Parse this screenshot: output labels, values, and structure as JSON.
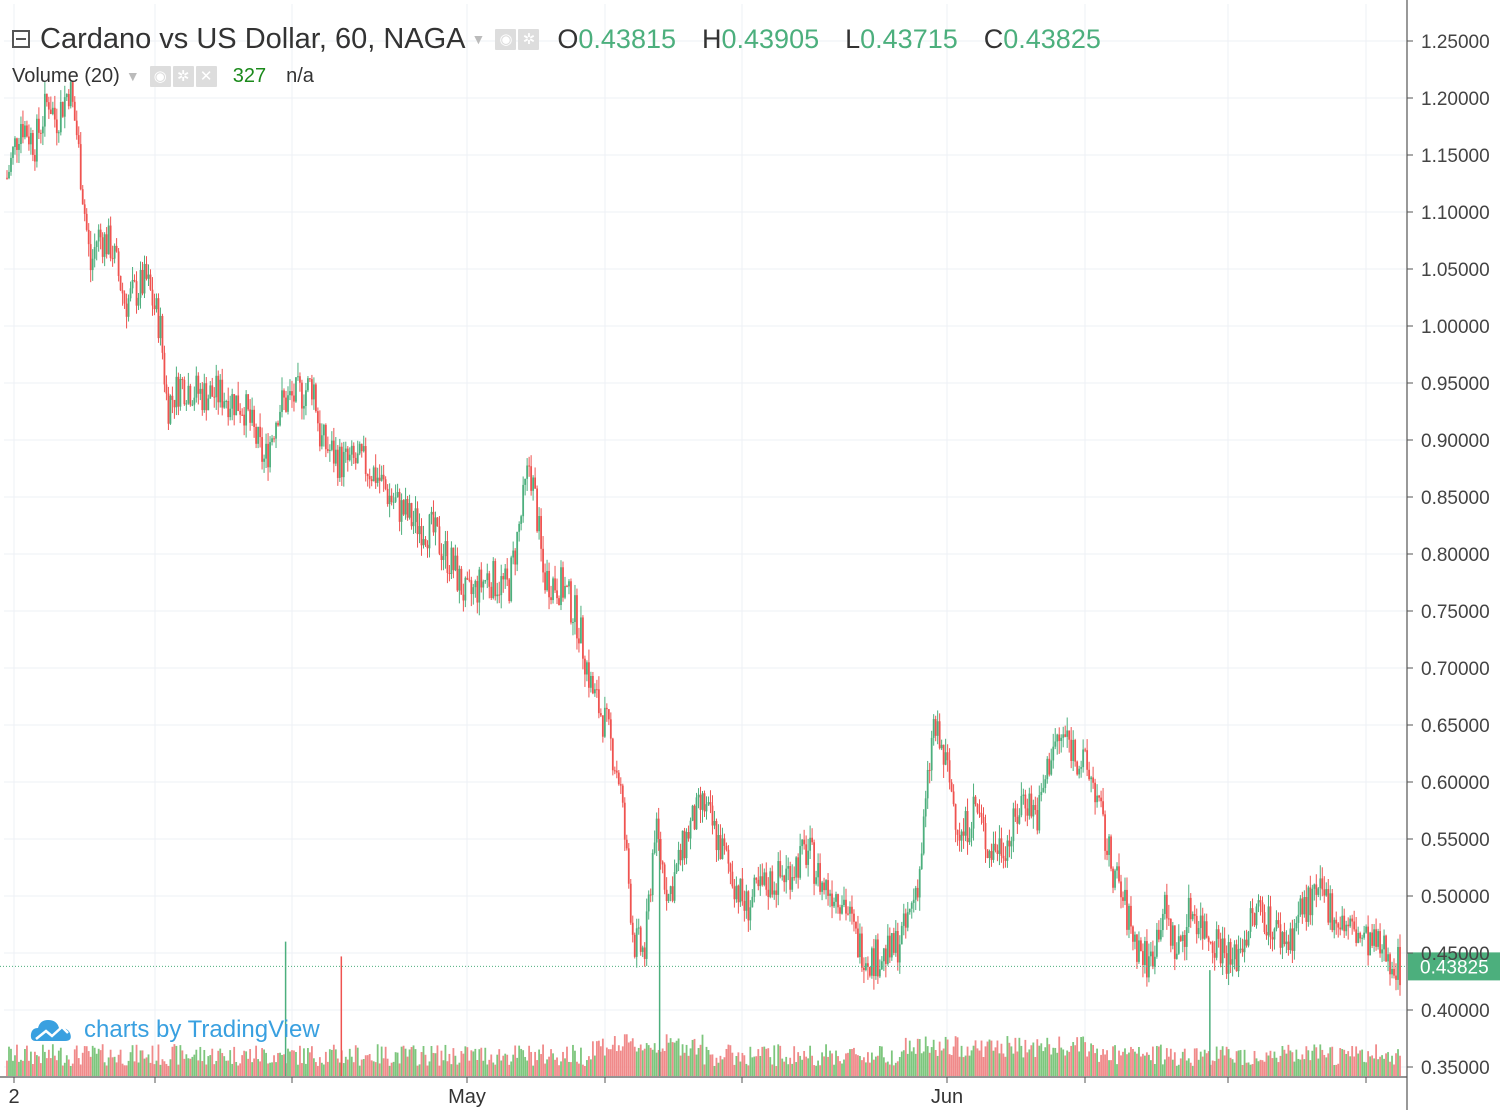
{
  "legend": {
    "title": "Cardano vs US Dollar, 60, NAGA",
    "ohlc": [
      {
        "key": "O",
        "value": "0.43815"
      },
      {
        "key": "H",
        "value": "0.43905"
      },
      {
        "key": "L",
        "value": "0.43715"
      },
      {
        "key": "C",
        "value": "0.43825"
      }
    ],
    "volume_title": "Volume (20)",
    "volume_value": "327",
    "volume_extra": "n/a"
  },
  "watermark": "charts by TradingView",
  "colors": {
    "up": "#4caf7d",
    "down": "#ef5350",
    "volume_up": "#7dc67d",
    "volume_down": "#f08a8a",
    "grid": "#eef1f5",
    "axis_text": "#444444",
    "price_label_bg": "#4caf7d",
    "watermark": "#39a0e0"
  },
  "chart_data": {
    "type": "candlestick",
    "symbol": "Cardano vs US Dollar",
    "interval": "60",
    "exchange": "NAGA",
    "y_axis": {
      "range": [
        0.345,
        1.27
      ],
      "ticks": [
        "1.25000",
        "1.20000",
        "1.15000",
        "1.10000",
        "1.05000",
        "1.00000",
        "0.95000",
        "0.90000",
        "0.85000",
        "0.80000",
        "0.75000",
        "0.70000",
        "0.65000",
        "0.60000",
        "0.55000",
        "0.50000",
        "0.45000",
        "0.40000",
        "0.35000"
      ]
    },
    "x_axis": {
      "labels": [
        "2",
        "May",
        "Jun"
      ]
    },
    "last_price": "0.43825",
    "last_value": 0.43825,
    "price_path": [
      [
        0,
        1.13
      ],
      [
        0.01,
        1.18
      ],
      [
        0.02,
        1.16
      ],
      [
        0.03,
        1.2
      ],
      [
        0.035,
        1.18
      ],
      [
        0.045,
        1.21
      ],
      [
        0.05,
        1.17
      ],
      [
        0.06,
        1.05
      ],
      [
        0.065,
        1.08
      ],
      [
        0.075,
        1.07
      ],
      [
        0.085,
        1.02
      ],
      [
        0.1,
        1.04
      ],
      [
        0.11,
        1.0
      ],
      [
        0.115,
        0.93
      ],
      [
        0.125,
        0.95
      ],
      [
        0.14,
        0.94
      ],
      [
        0.155,
        0.94
      ],
      [
        0.17,
        0.93
      ],
      [
        0.185,
        0.88
      ],
      [
        0.195,
        0.93
      ],
      [
        0.21,
        0.94
      ],
      [
        0.22,
        0.95
      ],
      [
        0.225,
        0.9
      ],
      [
        0.24,
        0.88
      ],
      [
        0.255,
        0.88
      ],
      [
        0.265,
        0.87
      ],
      [
        0.275,
        0.85
      ],
      [
        0.29,
        0.83
      ],
      [
        0.305,
        0.82
      ],
      [
        0.32,
        0.79
      ],
      [
        0.33,
        0.76
      ],
      [
        0.345,
        0.78
      ],
      [
        0.36,
        0.77
      ],
      [
        0.37,
        0.84
      ],
      [
        0.375,
        0.88
      ],
      [
        0.38,
        0.84
      ],
      [
        0.385,
        0.78
      ],
      [
        0.4,
        0.77
      ],
      [
        0.41,
        0.74
      ],
      [
        0.42,
        0.68
      ],
      [
        0.43,
        0.65
      ],
      [
        0.44,
        0.6
      ],
      [
        0.45,
        0.46
      ],
      [
        0.458,
        0.45
      ],
      [
        0.465,
        0.56
      ],
      [
        0.475,
        0.5
      ],
      [
        0.49,
        0.56
      ],
      [
        0.5,
        0.58
      ],
      [
        0.51,
        0.55
      ],
      [
        0.52,
        0.52
      ],
      [
        0.53,
        0.49
      ],
      [
        0.545,
        0.51
      ],
      [
        0.56,
        0.52
      ],
      [
        0.575,
        0.54
      ],
      [
        0.585,
        0.51
      ],
      [
        0.6,
        0.5
      ],
      [
        0.61,
        0.46
      ],
      [
        0.62,
        0.445
      ],
      [
        0.635,
        0.45
      ],
      [
        0.645,
        0.47
      ],
      [
        0.655,
        0.52
      ],
      [
        0.665,
        0.65
      ],
      [
        0.675,
        0.61
      ],
      [
        0.685,
        0.55
      ],
      [
        0.695,
        0.58
      ],
      [
        0.705,
        0.54
      ],
      [
        0.72,
        0.55
      ],
      [
        0.73,
        0.59
      ],
      [
        0.74,
        0.57
      ],
      [
        0.75,
        0.63
      ],
      [
        0.76,
        0.64
      ],
      [
        0.77,
        0.62
      ],
      [
        0.78,
        0.6
      ],
      [
        0.79,
        0.54
      ],
      [
        0.8,
        0.5
      ],
      [
        0.81,
        0.46
      ],
      [
        0.82,
        0.44
      ],
      [
        0.83,
        0.49
      ],
      [
        0.84,
        0.45
      ],
      [
        0.85,
        0.49
      ],
      [
        0.86,
        0.47
      ],
      [
        0.87,
        0.46
      ],
      [
        0.88,
        0.44
      ],
      [
        0.89,
        0.47
      ],
      [
        0.9,
        0.49
      ],
      [
        0.91,
        0.47
      ],
      [
        0.92,
        0.46
      ],
      [
        0.93,
        0.49
      ],
      [
        0.945,
        0.5
      ],
      [
        0.955,
        0.48
      ],
      [
        0.965,
        0.47
      ],
      [
        0.975,
        0.46
      ],
      [
        0.99,
        0.45
      ],
      [
        1.0,
        0.438
      ]
    ],
    "volume_spikes": [
      {
        "position": 0.2,
        "value": 0.46
      },
      {
        "position": 0.24,
        "value": 0.447
      },
      {
        "position": 0.4685,
        "value": 0.55
      },
      {
        "position": 0.8635,
        "value": 0.435
      }
    ]
  }
}
